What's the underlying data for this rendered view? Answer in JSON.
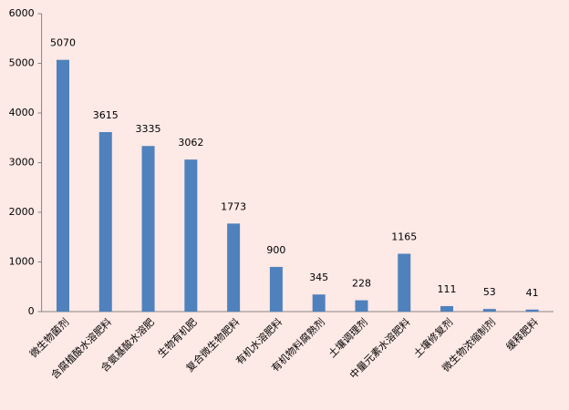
{
  "chart_data": {
    "type": "bar",
    "categories": [
      "微生物菌剂",
      "含腐植酸水溶肥料",
      "含氨基酸水溶肥",
      "生物有机肥",
      "复合微生物肥料",
      "有机水溶肥料",
      "有机物料腐熟剂",
      "土壤调理剂",
      "中量元素水溶肥料",
      "土壤修复剂",
      "微生物浓缩制剂",
      "缓释肥料"
    ],
    "values": [
      5070,
      3615,
      3335,
      3062,
      1773,
      900,
      345,
      228,
      1165,
      111,
      53,
      41
    ],
    "color": "#4f81bd",
    "ylim": [
      0,
      6000
    ],
    "yticks": [
      0,
      1000,
      2000,
      3000,
      4000,
      5000,
      6000
    ],
    "grid": false
  }
}
